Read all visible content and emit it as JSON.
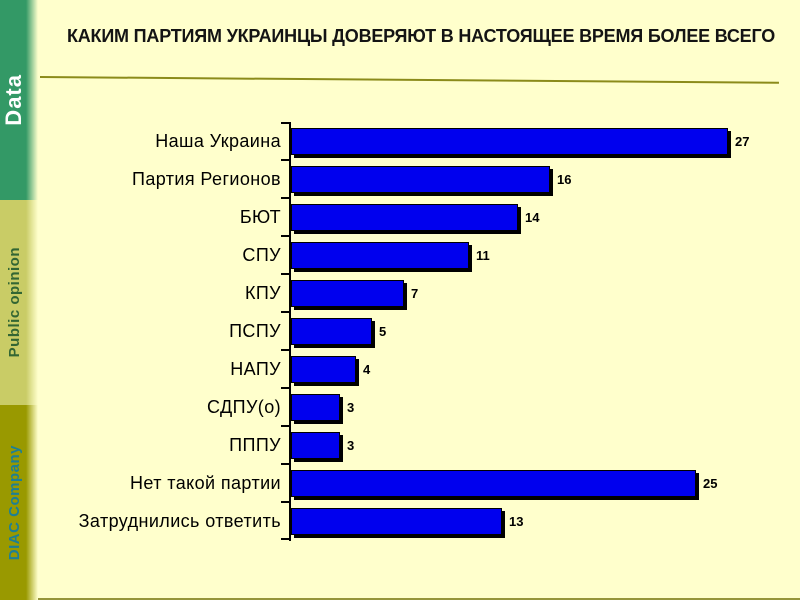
{
  "slide": {
    "title": "КАКИМ ПАРТИЯМ УКРАИНЦЫ ДОВЕРЯЮТ В НАСТОЯЩЕЕ ВРЕМЯ БОЛЕЕ ВСЕГО",
    "background_color": "#FFFFCC",
    "title_rule_color": "#8B8B1A",
    "bottom_rule_color": "#95953A"
  },
  "sidebar": {
    "segments": [
      {
        "label": "Data",
        "bg_color": "#339966",
        "text_color": "#FFFFFF"
      },
      {
        "label": "Public opinion",
        "bg_color": "#C9CC66",
        "text_color": "#336633"
      },
      {
        "label": "DIAC Company",
        "bg_color": "#999900",
        "text_color": "#1D7F95"
      }
    ]
  },
  "chart_data": {
    "type": "bar",
    "orientation": "horizontal",
    "categories": [
      "Наша Украина",
      "Партия Регионов",
      "БЮТ",
      "СПУ",
      "КПУ",
      "ПСПУ",
      "НАПУ",
      "СДПУ(о)",
      "ПППУ",
      "Нет такой партии",
      "Затруднились ответить"
    ],
    "values": [
      27,
      16,
      14,
      11,
      7,
      5,
      4,
      3,
      3,
      25,
      13
    ],
    "value_suffix": "",
    "title": "",
    "xlabel": "",
    "ylabel": "",
    "xlim": [
      0,
      30
    ],
    "bar_color": "#0000EE",
    "bar_border_color": "#000000",
    "shadow_color": "#000000",
    "axis_color": "#000000",
    "grid": false,
    "legend": false,
    "value_labels_shown": true
  }
}
